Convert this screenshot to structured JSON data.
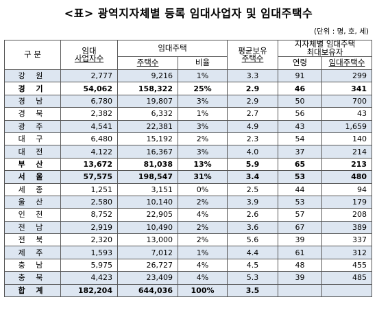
{
  "title": "<표> 광역지자체별 등록 임대사업자 및 임대주택수",
  "unit": "(단위 : 명, 호, 세)",
  "header": {
    "region": "구 분",
    "operators_l1": "임대",
    "operators_l2": "사업자수",
    "housing": "임대주택",
    "housing_count": "주택수",
    "ratio": "비율",
    "avg_l1": "평균보유",
    "avg_l2": "주택수",
    "top_l1": "지자체별 임대주택",
    "top_l2": "최대보유자",
    "age": "연령",
    "top_count": "임대주택수"
  },
  "rows": [
    {
      "region": "강 원",
      "operators": "2,777",
      "houses": "9,216",
      "ratio": "1%",
      "avg": "3.3",
      "age": "91",
      "top": "299",
      "bold": false
    },
    {
      "region": "경 기",
      "operators": "54,062",
      "houses": "158,322",
      "ratio": "25%",
      "avg": "2.9",
      "age": "46",
      "top": "341",
      "bold": true
    },
    {
      "region": "경 남",
      "operators": "6,780",
      "houses": "19,807",
      "ratio": "3%",
      "avg": "2.9",
      "age": "50",
      "top": "700",
      "bold": false
    },
    {
      "region": "경 북",
      "operators": "2,382",
      "houses": "6,332",
      "ratio": "1%",
      "avg": "2.7",
      "age": "56",
      "top": "43",
      "bold": false
    },
    {
      "region": "광 주",
      "operators": "4,541",
      "houses": "22,381",
      "ratio": "3%",
      "avg": "4.9",
      "age": "43",
      "top": "1,659",
      "bold": false
    },
    {
      "region": "대 구",
      "operators": "6,480",
      "houses": "15,192",
      "ratio": "2%",
      "avg": "2.3",
      "age": "54",
      "top": "140",
      "bold": false
    },
    {
      "region": "대 전",
      "operators": "4,122",
      "houses": "16,367",
      "ratio": "3%",
      "avg": "4.0",
      "age": "37",
      "top": "214",
      "bold": false
    },
    {
      "region": "부 산",
      "operators": "13,672",
      "houses": "81,038",
      "ratio": "13%",
      "avg": "5.9",
      "age": "65",
      "top": "213",
      "bold": true
    },
    {
      "region": "서 울",
      "operators": "57,575",
      "houses": "198,547",
      "ratio": "31%",
      "avg": "3.4",
      "age": "53",
      "top": "480",
      "bold": true
    },
    {
      "region": "세 종",
      "operators": "1,251",
      "houses": "3,151",
      "ratio": "0%",
      "avg": "2.5",
      "age": "44",
      "top": "94",
      "bold": false
    },
    {
      "region": "울 산",
      "operators": "2,580",
      "houses": "10,140",
      "ratio": "2%",
      "avg": "3.9",
      "age": "53",
      "top": "179",
      "bold": false
    },
    {
      "region": "인 천",
      "operators": "8,752",
      "houses": "22,905",
      "ratio": "4%",
      "avg": "2.6",
      "age": "57",
      "top": "208",
      "bold": false
    },
    {
      "region": "전 남",
      "operators": "2,919",
      "houses": "10,490",
      "ratio": "2%",
      "avg": "3.6",
      "age": "67",
      "top": "389",
      "bold": false
    },
    {
      "region": "전 북",
      "operators": "2,320",
      "houses": "13,000",
      "ratio": "2%",
      "avg": "5.6",
      "age": "39",
      "top": "337",
      "bold": false
    },
    {
      "region": "제 주",
      "operators": "1,593",
      "houses": "7,012",
      "ratio": "1%",
      "avg": "4.4",
      "age": "61",
      "top": "312",
      "bold": false
    },
    {
      "region": "충 남",
      "operators": "5,975",
      "houses": "26,727",
      "ratio": "4%",
      "avg": "4.5",
      "age": "48",
      "top": "455",
      "bold": false
    },
    {
      "region": "충 북",
      "operators": "4,423",
      "houses": "23,409",
      "ratio": "4%",
      "avg": "5.3",
      "age": "39",
      "top": "485",
      "bold": false
    }
  ],
  "total": {
    "region": "합 계",
    "operators": "182,204",
    "houses": "644,036",
    "ratio": "100%",
    "avg": "3.5",
    "age": "",
    "top": ""
  }
}
